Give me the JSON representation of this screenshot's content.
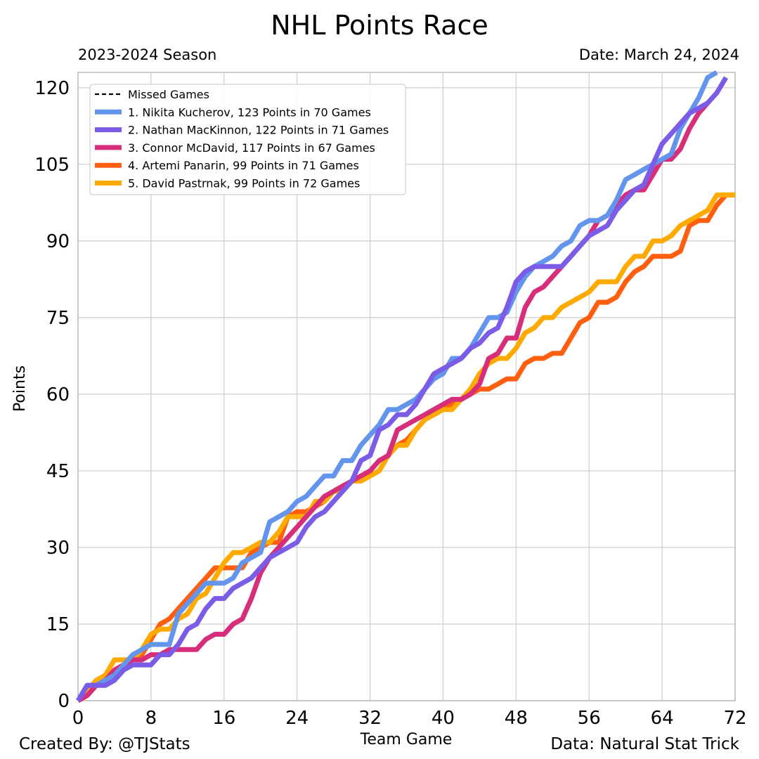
{
  "header": {
    "title": "NHL Points Race",
    "subtitle": "2023-2024 Season",
    "date": "Date: March 24, 2024"
  },
  "footer": {
    "credit": "Created By: @TJStats",
    "source": "Data: Natural Stat Trick"
  },
  "colors": {
    "grid": "#cccccc",
    "axis": "#bbbbbb"
  },
  "chart_data": {
    "type": "line",
    "title": "NHL Points Race",
    "subtitle": "2023-2024 Season",
    "xlabel": "Team Game",
    "ylabel": "Points",
    "xlim": [
      0,
      72
    ],
    "ylim": [
      0,
      120
    ],
    "xticks": [
      0,
      8,
      16,
      24,
      32,
      40,
      48,
      56,
      64,
      72
    ],
    "yticks": [
      0,
      15,
      30,
      45,
      60,
      75,
      90,
      105,
      120
    ],
    "grid": true,
    "legend_position": "top-left",
    "legend_extra": "Missed Games",
    "series": [
      {
        "name": "1. Nikita Kucherov, 123 Points in 70 Games",
        "color": "#6495ED",
        "x": [
          0,
          1,
          2,
          3,
          4,
          5,
          6,
          7,
          8,
          9,
          10,
          11,
          12,
          13,
          14,
          15,
          16,
          17,
          18,
          19,
          20,
          21,
          22,
          23,
          24,
          25,
          26,
          27,
          28,
          29,
          30,
          31,
          32,
          33,
          34,
          35,
          36,
          37,
          38,
          39,
          40,
          41,
          42,
          43,
          44,
          45,
          46,
          47,
          48,
          49,
          50,
          51,
          52,
          53,
          54,
          55,
          56,
          57,
          58,
          59,
          60,
          61,
          62,
          63,
          64,
          65,
          66,
          67,
          68,
          69,
          70
        ],
        "y": [
          0,
          3,
          3,
          4,
          5,
          7,
          9,
          10,
          11,
          11,
          11,
          17,
          19,
          21,
          23,
          23,
          23,
          24,
          27,
          28,
          29,
          35,
          36,
          37,
          39,
          40,
          42,
          44,
          44,
          47,
          47,
          50,
          52,
          54,
          57,
          57,
          58,
          59,
          61,
          63,
          64,
          67,
          67,
          69,
          72,
          75,
          75,
          76,
          80,
          83,
          85,
          86,
          87,
          89,
          90,
          93,
          94,
          94,
          95,
          98,
          102,
          103,
          104,
          105,
          106,
          107,
          112,
          115,
          118,
          122,
          123
        ]
      },
      {
        "name": "2. Nathan MacKinnon, 122 Points in 71 Games",
        "color": "#7B5CE6",
        "x": [
          0,
          1,
          2,
          3,
          4,
          5,
          6,
          7,
          8,
          9,
          10,
          11,
          12,
          13,
          14,
          15,
          16,
          17,
          18,
          19,
          20,
          21,
          22,
          23,
          24,
          25,
          26,
          27,
          28,
          29,
          30,
          31,
          32,
          33,
          34,
          35,
          36,
          37,
          38,
          39,
          40,
          41,
          42,
          43,
          44,
          45,
          46,
          47,
          48,
          49,
          50,
          51,
          52,
          53,
          54,
          55,
          56,
          57,
          58,
          59,
          60,
          61,
          62,
          63,
          64,
          65,
          66,
          67,
          68,
          69,
          70,
          71
        ],
        "y": [
          0,
          3,
          3,
          3,
          4,
          6,
          7,
          7,
          7,
          9,
          9,
          11,
          14,
          15,
          18,
          20,
          20,
          22,
          23,
          24,
          26,
          28,
          29,
          30,
          31,
          34,
          36,
          37,
          39,
          41,
          43,
          47,
          48,
          53,
          54,
          56,
          56,
          58,
          61,
          64,
          65,
          66,
          67,
          69,
          70,
          72,
          73,
          77,
          82,
          84,
          85,
          85,
          85,
          85,
          87,
          89,
          91,
          92,
          93,
          96,
          98,
          100,
          101,
          105,
          109,
          111,
          113,
          115,
          116,
          117,
          119,
          122
        ]
      },
      {
        "name": "3. Connor McDavid, 117 Points in 67 Games",
        "color": "#D62E7A",
        "x": [
          0,
          1,
          2,
          3,
          4,
          5,
          6,
          7,
          8,
          9,
          10,
          11,
          12,
          13,
          14,
          15,
          16,
          17,
          18,
          19,
          20,
          21,
          22,
          23,
          24,
          25,
          26,
          27,
          28,
          29,
          30,
          31,
          32,
          33,
          34,
          35,
          36,
          37,
          38,
          39,
          40,
          41,
          42,
          43,
          44,
          45,
          46,
          47,
          48,
          49,
          50,
          51,
          52,
          53,
          54,
          55,
          56,
          57,
          58,
          59,
          60,
          61,
          62,
          63,
          64,
          65,
          66,
          67,
          68,
          69
        ],
        "y": [
          0,
          1,
          3,
          4,
          6,
          7,
          8,
          8,
          9,
          9,
          10,
          10,
          10,
          10,
          12,
          13,
          13,
          15,
          16,
          20,
          25,
          28,
          30,
          32,
          34,
          36,
          38,
          40,
          41,
          42,
          43,
          44,
          45,
          47,
          48,
          53,
          54,
          55,
          56,
          57,
          58,
          59,
          59,
          60,
          62,
          67,
          68,
          71,
          71,
          77,
          80,
          81,
          83,
          85,
          87,
          89,
          91,
          94,
          95,
          97,
          99,
          100,
          100,
          103,
          106,
          106,
          108,
          112,
          115,
          117
        ]
      },
      {
        "name": "4. Artemi Panarin, 99 Points in 71 Games",
        "color": "#FF5F0F",
        "x": [
          0,
          1,
          2,
          3,
          4,
          5,
          6,
          7,
          8,
          9,
          10,
          11,
          12,
          13,
          14,
          15,
          16,
          17,
          18,
          19,
          20,
          21,
          22,
          23,
          24,
          25,
          26,
          27,
          28,
          29,
          30,
          31,
          32,
          33,
          34,
          35,
          36,
          37,
          38,
          39,
          40,
          41,
          42,
          43,
          44,
          45,
          46,
          47,
          48,
          49,
          50,
          51,
          52,
          53,
          54,
          55,
          56,
          57,
          58,
          59,
          60,
          61,
          62,
          63,
          64,
          65,
          66,
          67,
          68,
          69,
          70,
          71,
          72
        ],
        "y": [
          0,
          1,
          3,
          4,
          6,
          7,
          8,
          9,
          12,
          15,
          16,
          18,
          20,
          22,
          24,
          26,
          26,
          26,
          26,
          29,
          30,
          31,
          31,
          36,
          37,
          37,
          38,
          39,
          41,
          42,
          43,
          43,
          44,
          45,
          48,
          50,
          51,
          53,
          55,
          56,
          57,
          58,
          59,
          60,
          61,
          61,
          62,
          63,
          63,
          66,
          67,
          67,
          68,
          68,
          71,
          74,
          75,
          78,
          78,
          79,
          82,
          84,
          85,
          87,
          87,
          87,
          88,
          93,
          94,
          94,
          97,
          99,
          99
        ]
      },
      {
        "name": "5. David Pastrnak, 99 Points in 72 Games",
        "color": "#FFAA00",
        "x": [
          0,
          1,
          2,
          3,
          4,
          5,
          6,
          7,
          8,
          9,
          10,
          11,
          12,
          13,
          14,
          15,
          16,
          17,
          18,
          19,
          20,
          21,
          22,
          23,
          24,
          25,
          26,
          27,
          28,
          29,
          30,
          31,
          32,
          33,
          34,
          35,
          36,
          37,
          38,
          39,
          40,
          41,
          42,
          43,
          44,
          45,
          46,
          47,
          48,
          49,
          50,
          51,
          52,
          53,
          54,
          55,
          56,
          57,
          58,
          59,
          60,
          61,
          62,
          63,
          64,
          65,
          66,
          67,
          68,
          69,
          70,
          71,
          72
        ],
        "y": [
          0,
          2,
          4,
          5,
          8,
          8,
          8,
          10,
          13,
          14,
          14,
          16,
          17,
          20,
          21,
          24,
          27,
          29,
          29,
          30,
          31,
          31,
          33,
          36,
          36,
          36,
          39,
          39,
          41,
          41,
          43,
          43,
          44,
          45,
          48,
          50,
          50,
          53,
          55,
          56,
          57,
          57,
          59,
          61,
          64,
          66,
          67,
          67,
          69,
          72,
          73,
          75,
          75,
          77,
          78,
          79,
          80,
          82,
          82,
          82,
          85,
          87,
          87,
          90,
          90,
          91,
          93,
          94,
          95,
          96,
          99,
          99,
          99
        ]
      }
    ]
  }
}
